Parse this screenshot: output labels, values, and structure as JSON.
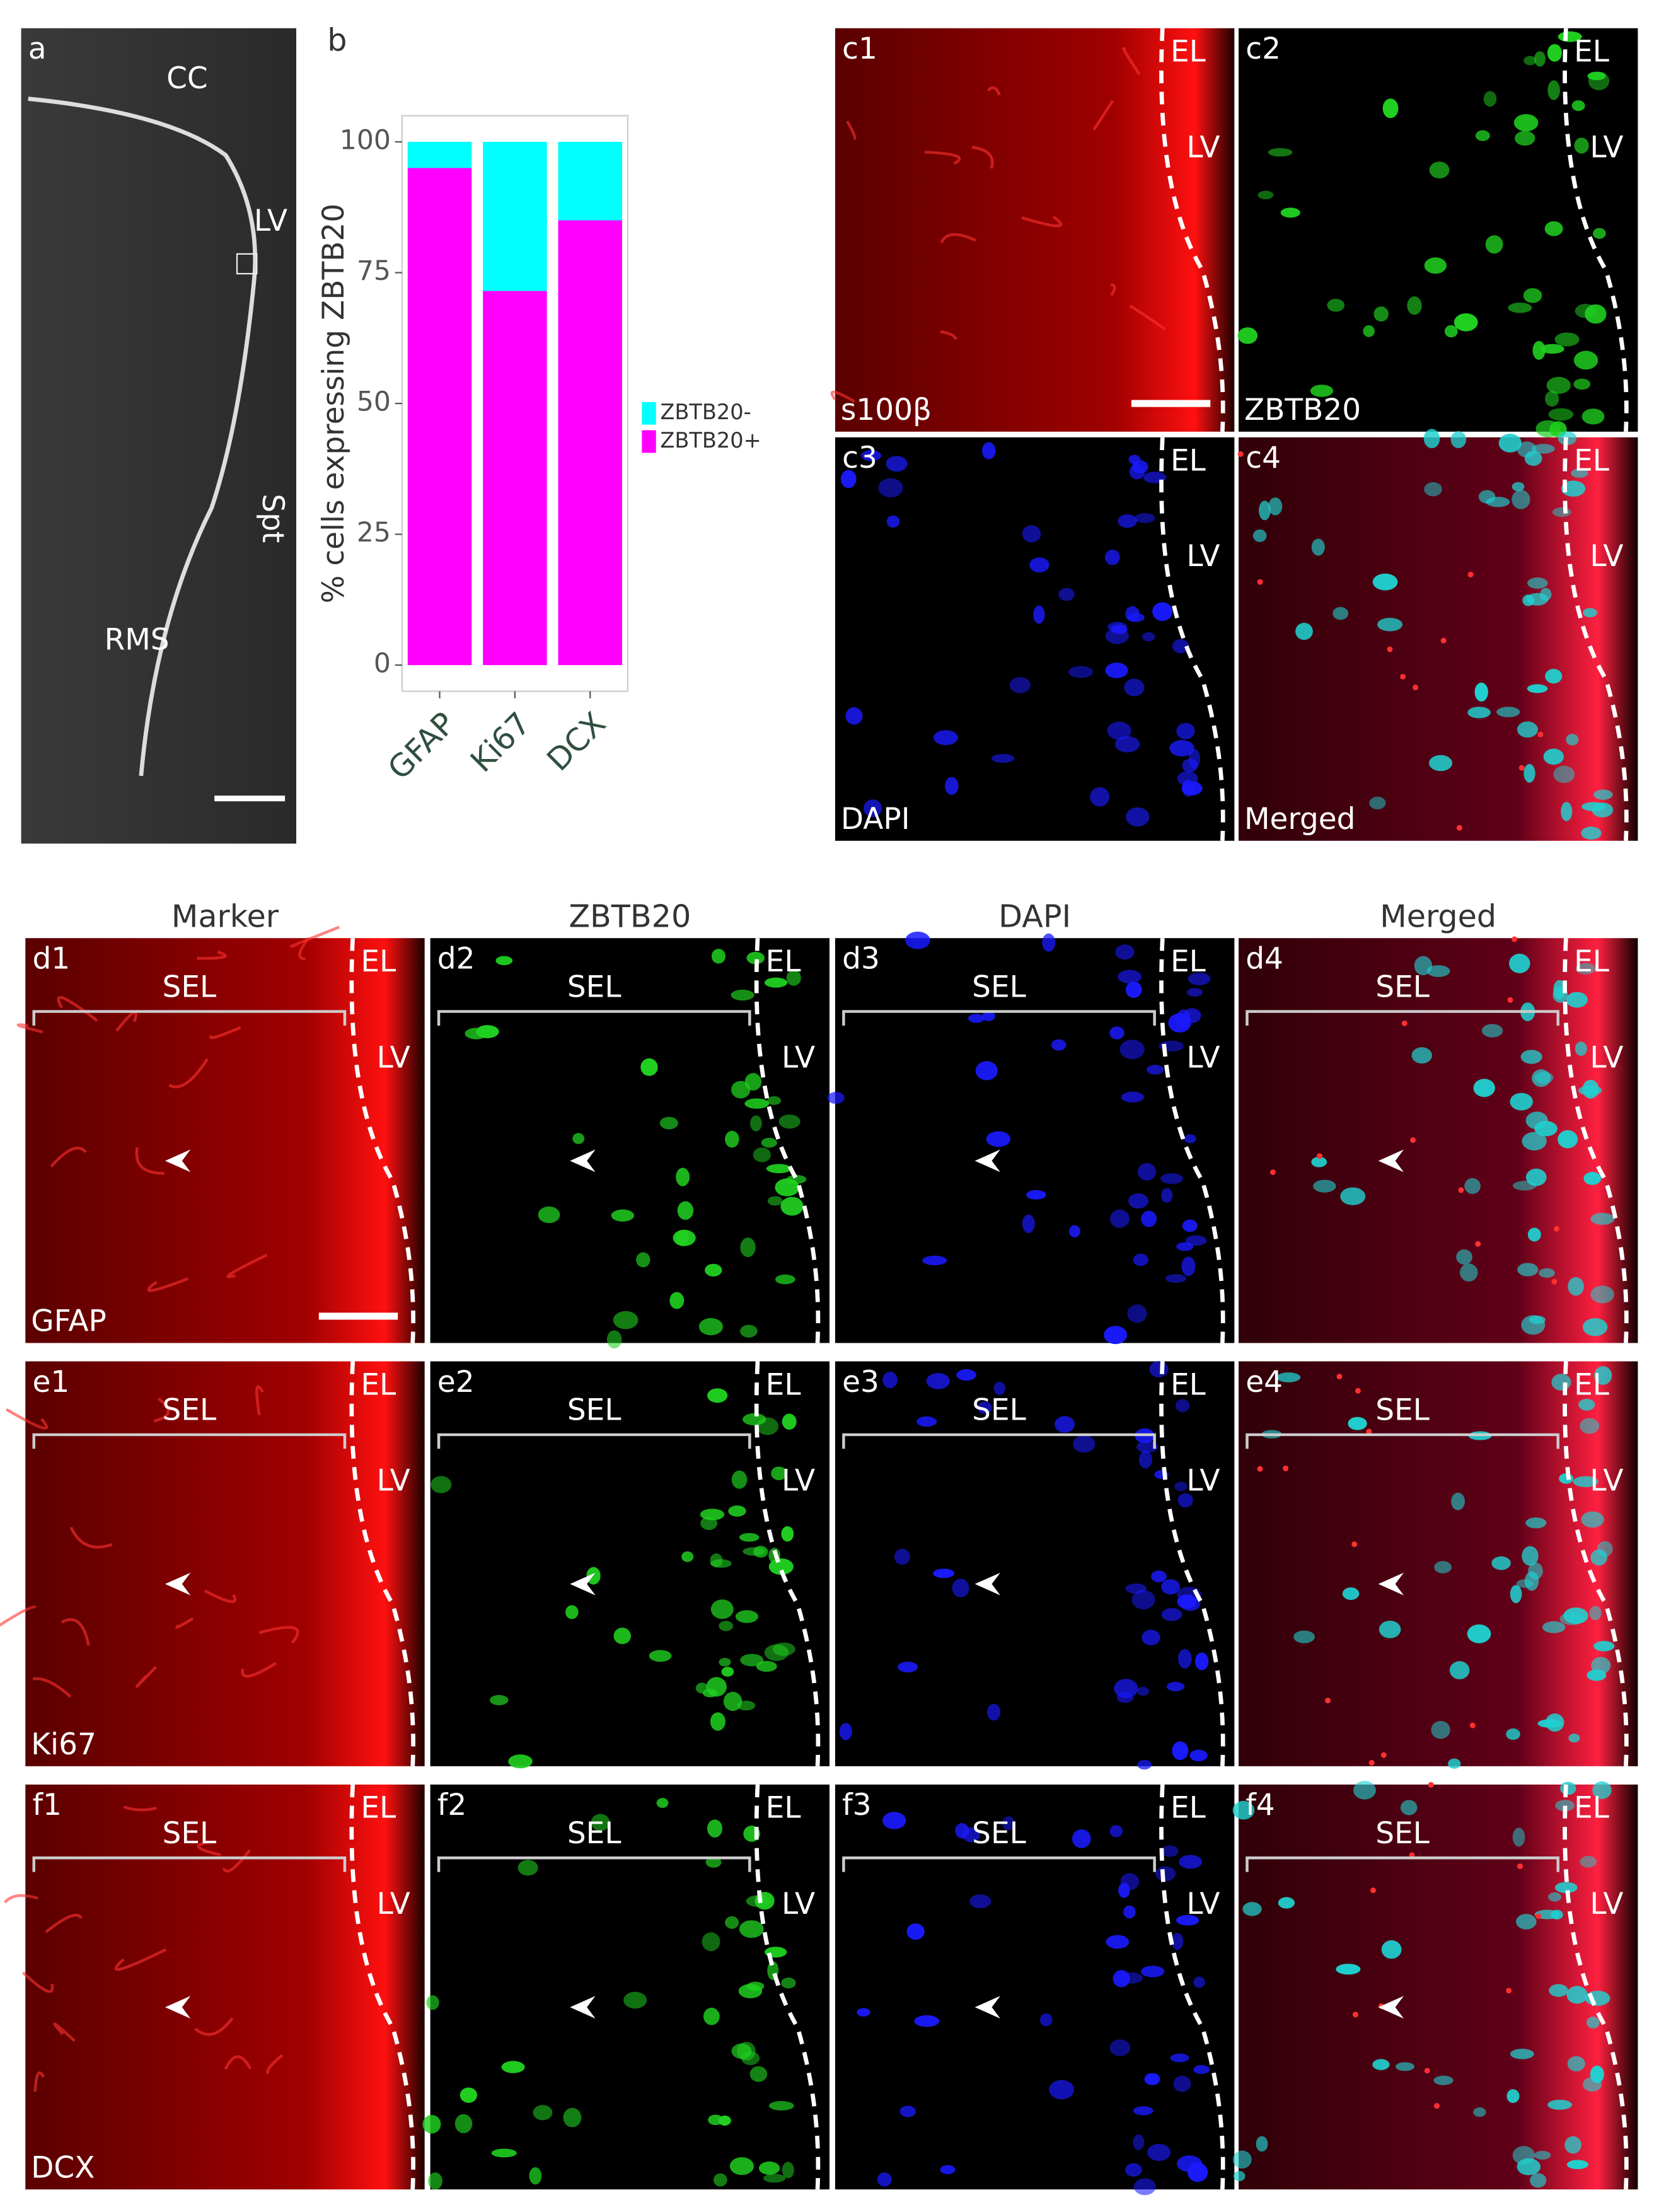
{
  "panel_a": {
    "label": "a",
    "cc": "CC",
    "lv": "LV",
    "spt": "Spt",
    "rms": "RMS"
  },
  "panel_b_label": "b",
  "chart_data": {
    "type": "bar",
    "stacked": true,
    "y_label": "% cells expressing ZBTB20",
    "categories": [
      "GFAP",
      "Ki67",
      "DCX"
    ],
    "series": [
      {
        "name": "ZBTB20+",
        "color": "#ff00ff",
        "values": [
          95,
          71.5,
          85
        ]
      },
      {
        "name": "ZBTB20-",
        "color": "#00ffff",
        "values": [
          5,
          28.5,
          15
        ]
      }
    ],
    "ylim": [
      -5,
      105
    ],
    "yticks": [
      0,
      25,
      50,
      75,
      100
    ],
    "grid": false,
    "legend": "right"
  },
  "panel_c": [
    {
      "label": "c1",
      "el": "EL",
      "lv": "LV",
      "stain": "s100β"
    },
    {
      "label": "c2",
      "el": "EL",
      "lv": "LV",
      "stain": "ZBTB20"
    },
    {
      "label": "c3",
      "el": "EL",
      "lv": "LV",
      "stain": "DAPI"
    },
    {
      "label": "c4",
      "el": "EL",
      "lv": "LV",
      "stain": "Merged"
    }
  ],
  "column_headers": [
    "Marker",
    "ZBTB20",
    "DAPI",
    "Merged"
  ],
  "rows": [
    {
      "marker": "GFAP",
      "panels": [
        {
          "label": "d1",
          "sel": "SEL",
          "el": "EL",
          "lv": "LV"
        },
        {
          "label": "d2",
          "sel": "SEL",
          "el": "EL",
          "lv": "LV"
        },
        {
          "label": "d3",
          "sel": "SEL",
          "el": "EL",
          "lv": "LV"
        },
        {
          "label": "d4",
          "sel": "SEL",
          "el": "EL",
          "lv": "LV"
        }
      ]
    },
    {
      "marker": "Ki67",
      "panels": [
        {
          "label": "e1",
          "sel": "SEL",
          "el": "EL",
          "lv": "LV"
        },
        {
          "label": "e2",
          "sel": "SEL",
          "el": "EL",
          "lv": "LV"
        },
        {
          "label": "e3",
          "sel": "SEL",
          "el": "EL",
          "lv": "LV"
        },
        {
          "label": "e4",
          "sel": "SEL",
          "el": "EL",
          "lv": "LV"
        }
      ]
    },
    {
      "marker": "DCX",
      "panels": [
        {
          "label": "f1",
          "sel": "SEL",
          "el": "EL",
          "lv": "LV"
        },
        {
          "label": "f2",
          "sel": "SEL",
          "el": "EL",
          "lv": "LV"
        },
        {
          "label": "f3",
          "sel": "SEL",
          "el": "EL",
          "lv": "LV"
        },
        {
          "label": "f4",
          "sel": "SEL",
          "el": "EL",
          "lv": "LV"
        }
      ]
    }
  ]
}
